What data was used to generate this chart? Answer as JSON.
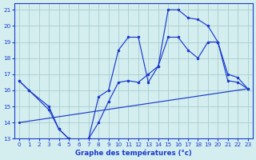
{
  "background_color": "#d4eef0",
  "grid_color": "#a8cccc",
  "line_color": "#1a3acc",
  "marker_color": "#1a3acc",
  "xlabel": "Graphe des températures (°c)",
  "xlim": [
    -0.5,
    23.5
  ],
  "ylim": [
    13,
    21.4
  ],
  "xticks": [
    0,
    1,
    2,
    3,
    4,
    5,
    6,
    7,
    8,
    9,
    10,
    11,
    12,
    13,
    14,
    15,
    16,
    17,
    18,
    19,
    20,
    21,
    22,
    23
  ],
  "yticks": [
    13,
    14,
    15,
    16,
    17,
    18,
    19,
    20,
    21
  ],
  "series": [
    {
      "x": [
        0,
        1,
        3,
        4,
        5,
        6,
        7,
        8,
        9,
        10,
        11,
        12,
        13,
        14,
        15,
        16,
        17,
        18,
        19,
        20,
        21,
        22,
        23
      ],
      "y": [
        16.6,
        16.0,
        14.8,
        13.6,
        13.0,
        12.9,
        13.0,
        15.6,
        16.0,
        18.5,
        19.3,
        19.3,
        16.5,
        17.5,
        21.0,
        21.0,
        20.5,
        20.4,
        20.0,
        19.0,
        16.6,
        16.5,
        16.1
      ]
    },
    {
      "x": [
        0,
        1,
        3,
        4,
        5,
        6,
        7,
        8,
        9,
        10,
        11,
        12,
        13,
        14,
        15,
        16,
        17,
        18,
        19,
        20,
        21,
        22,
        23
      ],
      "y": [
        16.6,
        16.0,
        15.0,
        13.6,
        13.0,
        12.9,
        13.0,
        14.0,
        15.3,
        16.5,
        16.6,
        16.5,
        17.0,
        17.5,
        19.3,
        19.3,
        18.5,
        18.0,
        19.0,
        19.0,
        17.0,
        16.8,
        16.1
      ]
    },
    {
      "x": [
        0,
        23
      ],
      "y": [
        14.0,
        16.1
      ]
    }
  ]
}
